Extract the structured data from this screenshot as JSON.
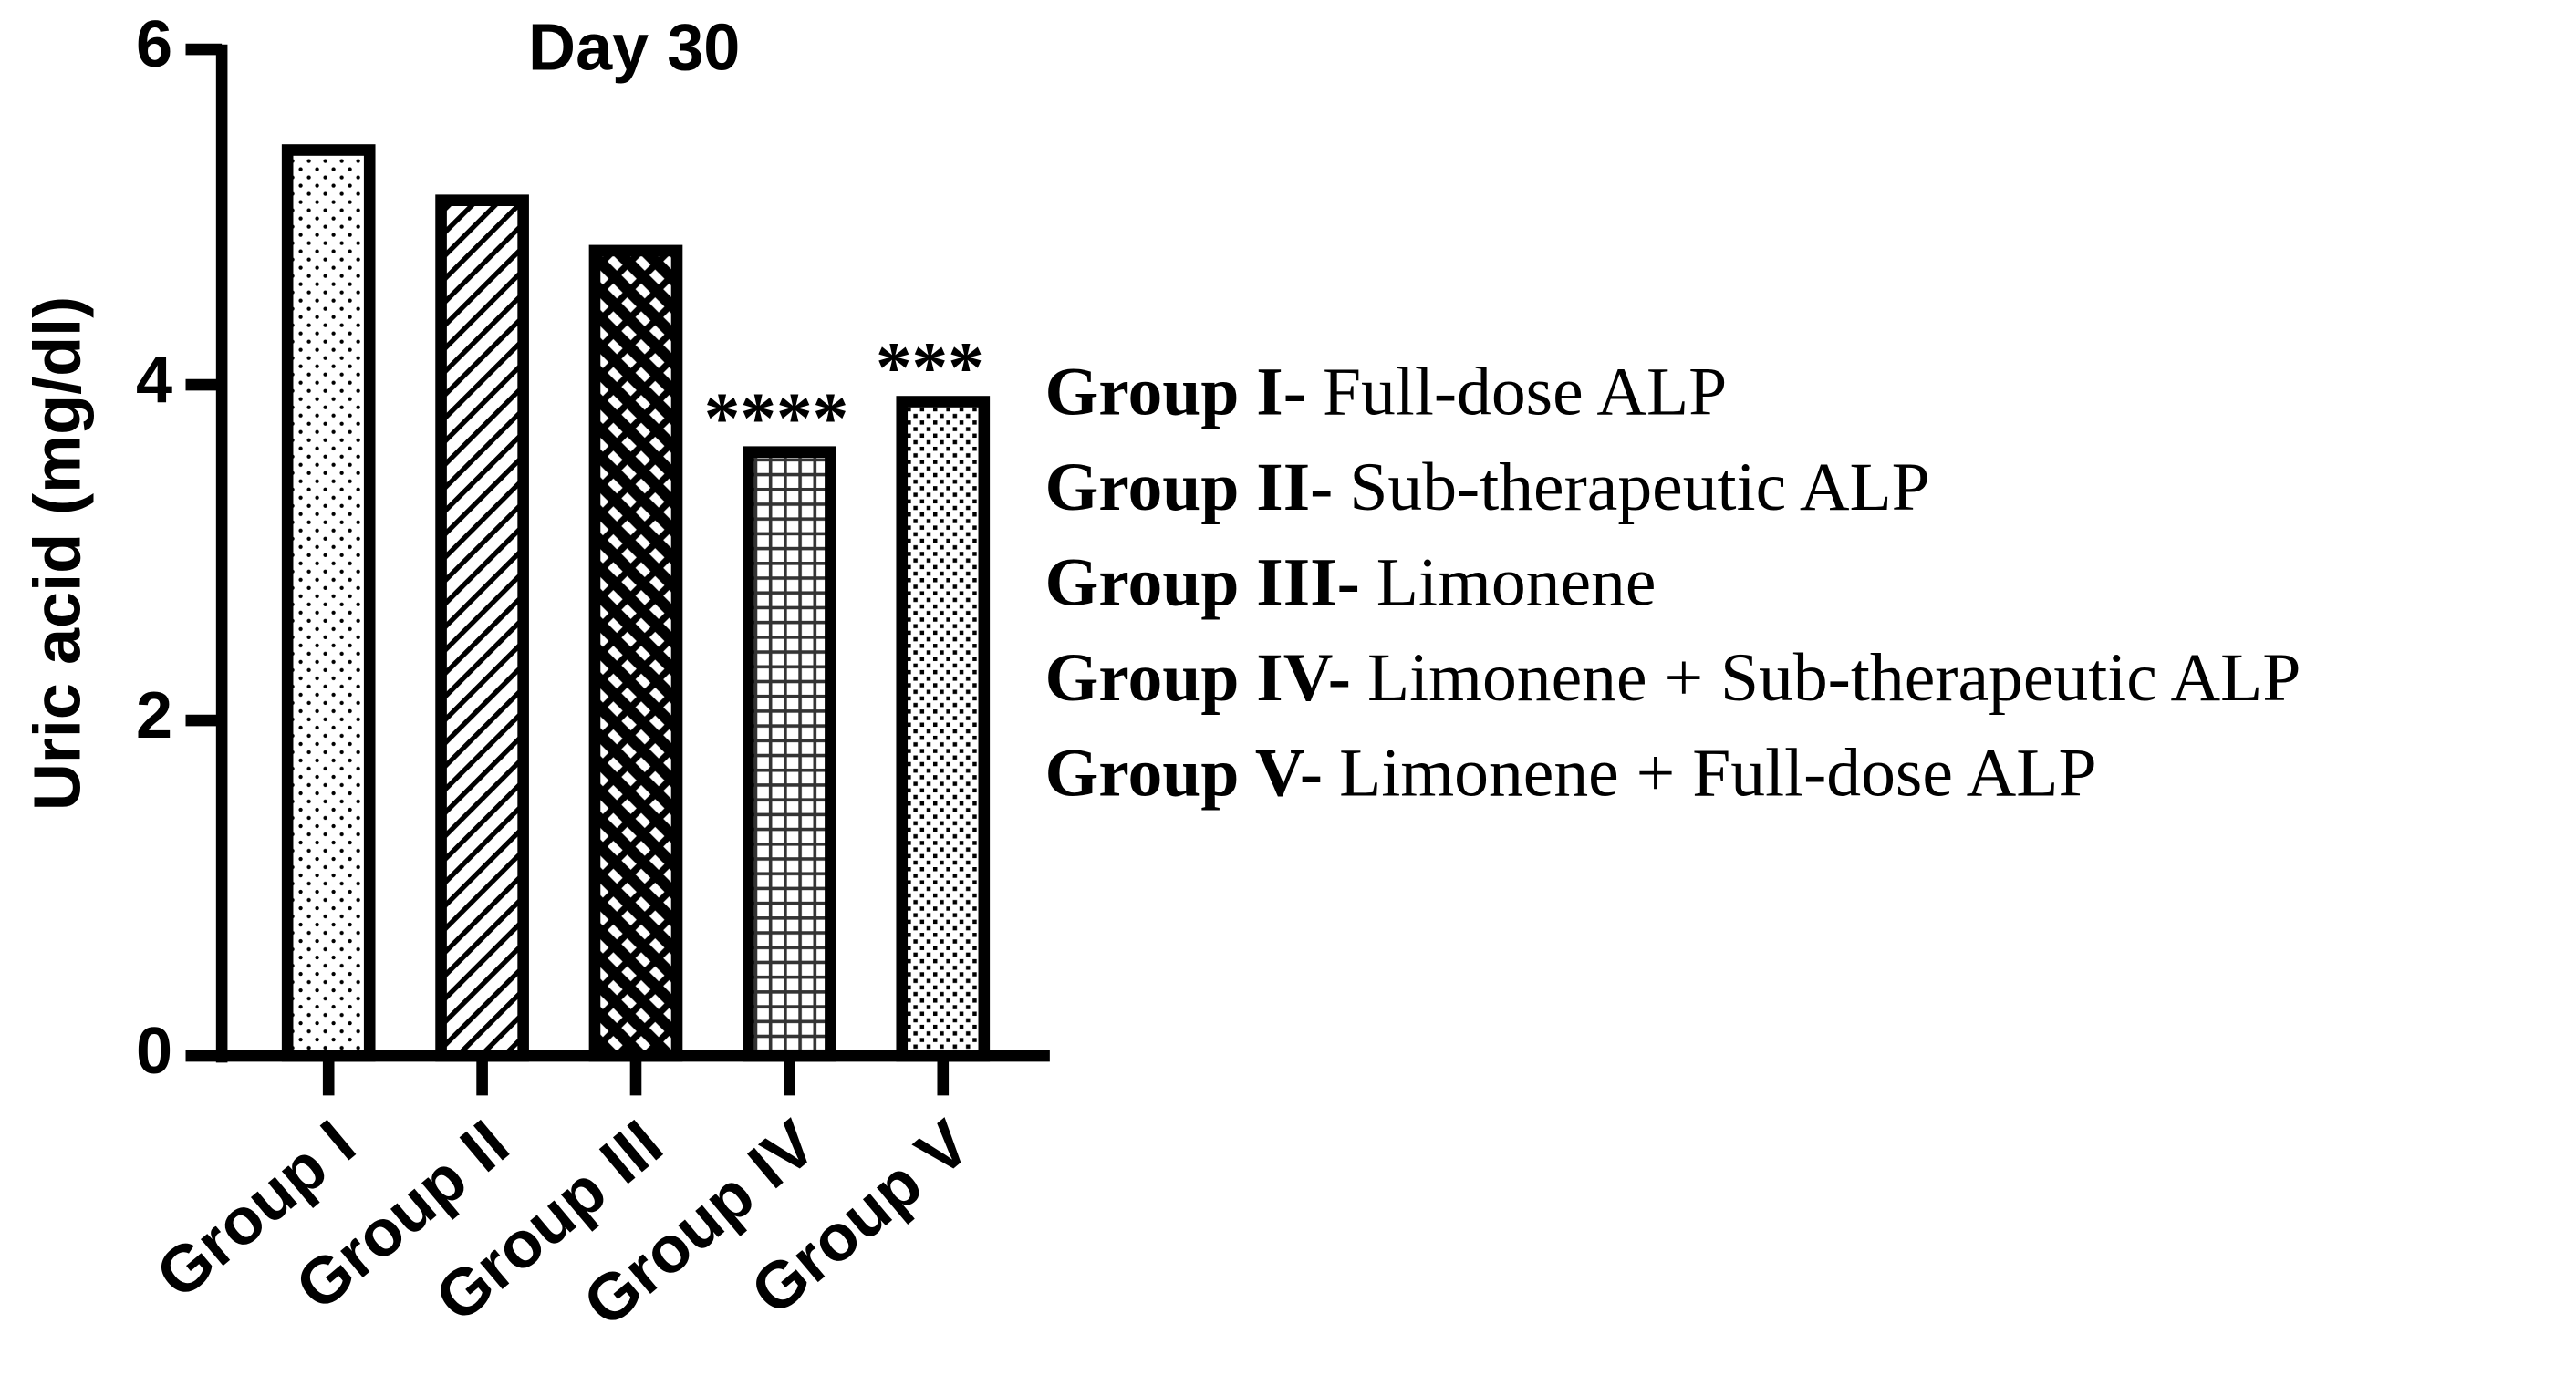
{
  "chart_data": {
    "type": "bar",
    "title": "Day 30",
    "y_label": "Uric acid (mg/dl)",
    "categories": [
      "Group I",
      "Group II",
      "Group III",
      "Group IV",
      "Group V"
    ],
    "values": [
      5.4,
      5.1,
      4.8,
      3.6,
      3.9
    ],
    "significance": [
      null,
      null,
      null,
      "****",
      "***"
    ],
    "patterns": [
      "dots",
      "diagonal",
      "crosshatch",
      "grid",
      "checker"
    ],
    "ylim": [
      0,
      6
    ],
    "yticks": [
      0,
      2,
      4,
      6
    ],
    "color": "#000000",
    "legend": [
      {
        "bold": "Group I-",
        "text": "Full-dose ALP"
      },
      {
        "bold": "Group II-",
        "text": "Sub-therapeutic ALP"
      },
      {
        "bold": "Group III-",
        "text": "Limonene"
      },
      {
        "bold": "Group IV-",
        "text": "Limonene + Sub-therapeutic ALP"
      },
      {
        "bold": "Group V-",
        "text": "Limonene + Full-dose ALP"
      }
    ]
  }
}
